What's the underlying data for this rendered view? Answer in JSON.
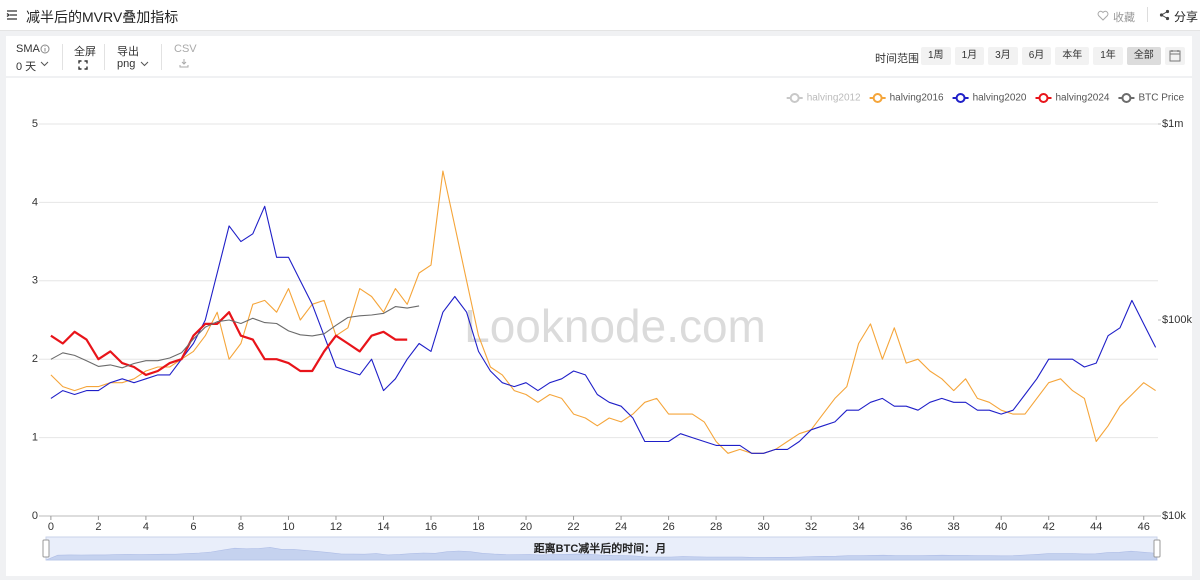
{
  "header": {
    "title": "减半后的MVRV叠加指标",
    "favorite": "收藏",
    "share": "分享"
  },
  "toolbar": {
    "sma_label": "SMA",
    "sma_value": "0 天",
    "fullscreen": "全屏",
    "export_label": "导出",
    "export_value": "png",
    "csv": "CSV",
    "range_label": "时间范围",
    "ranges": [
      "1周",
      "1月",
      "3月",
      "6月",
      "本年",
      "1年",
      "全部"
    ],
    "active_range": "全部"
  },
  "chart_data": {
    "type": "line",
    "watermark": "Looknode.com",
    "x_label": "距离BTC减半后的时间：月",
    "xlim": [
      -0.5,
      46.6
    ],
    "xticks": [
      0,
      2,
      4,
      6,
      8,
      10,
      12,
      14,
      16,
      18,
      20,
      22,
      24,
      26,
      28,
      30,
      32,
      34,
      36,
      38,
      40,
      42,
      44,
      46
    ],
    "ylim": [
      0,
      5
    ],
    "yticks": [
      0,
      1,
      2,
      3,
      4,
      5
    ],
    "y2lim": [
      10000,
      1000000
    ],
    "y2log": true,
    "y2ticks": [
      {
        "value": 10000,
        "label": "$10k"
      },
      {
        "value": 100000,
        "label": "$100k"
      },
      {
        "value": 1000000,
        "label": "$1m"
      }
    ],
    "grid": true,
    "legend": "top-right",
    "x": [
      0,
      0.5,
      1,
      1.5,
      2,
      2.5,
      3,
      3.5,
      4,
      4.5,
      5,
      5.5,
      6,
      6.5,
      7,
      7.5,
      8,
      8.5,
      9,
      9.5,
      10,
      10.5,
      11,
      11.5,
      12,
      12.5,
      13,
      13.5,
      14,
      14.5,
      15,
      15.5,
      16,
      16.5,
      17,
      17.5,
      18,
      18.5,
      19,
      19.5,
      20,
      20.5,
      21,
      21.5,
      22,
      22.5,
      23,
      23.5,
      24,
      24.5,
      25,
      25.5,
      26,
      26.5,
      27,
      27.5,
      28,
      28.5,
      29,
      29.5,
      30,
      30.5,
      31,
      31.5,
      32,
      32.5,
      33,
      33.5,
      34,
      34.5,
      35,
      35.5,
      36,
      36.5,
      37,
      37.5,
      38,
      38.5,
      39,
      39.5,
      40,
      40.5,
      41,
      41.5,
      42,
      42.5,
      43,
      43.5,
      44,
      44.5,
      45,
      45.5,
      46,
      46.5
    ],
    "series": [
      {
        "name": "halving2012",
        "color": "#c8c8c8",
        "hidden": true,
        "values": [
          null,
          null,
          null,
          null,
          null,
          null,
          null,
          null,
          null,
          null,
          null,
          null,
          null,
          null,
          null,
          null,
          null,
          null,
          null,
          null,
          null,
          null,
          null,
          null,
          null,
          null,
          null,
          null,
          null,
          null,
          null,
          null,
          null,
          null,
          null,
          null,
          null,
          null,
          null,
          null,
          null,
          null,
          null,
          null,
          null,
          null,
          null,
          null,
          null,
          null,
          null,
          null,
          null,
          null,
          null,
          null,
          null,
          null,
          null,
          null,
          null,
          null,
          null,
          null,
          null,
          null,
          null,
          null,
          null,
          null,
          null,
          null,
          null,
          null,
          null,
          null,
          null,
          null,
          null,
          null,
          null,
          null,
          null,
          null,
          null,
          null,
          null,
          null,
          null,
          null,
          null,
          null,
          null,
          null
        ]
      },
      {
        "name": "halving2016",
        "color": "#f5a53a",
        "values": [
          1.8,
          1.65,
          1.6,
          1.65,
          1.65,
          1.7,
          1.7,
          1.75,
          1.85,
          1.9,
          1.9,
          2.0,
          2.1,
          2.3,
          2.6,
          2.0,
          2.2,
          2.7,
          2.75,
          2.6,
          2.9,
          2.5,
          2.7,
          2.75,
          2.3,
          2.4,
          2.9,
          2.8,
          2.6,
          2.9,
          2.7,
          3.1,
          3.2,
          4.4,
          3.7,
          3.0,
          2.3,
          1.9,
          1.8,
          1.6,
          1.55,
          1.45,
          1.55,
          1.5,
          1.3,
          1.25,
          1.15,
          1.25,
          1.2,
          1.3,
          1.45,
          1.5,
          1.3,
          1.3,
          1.3,
          1.2,
          0.95,
          0.8,
          0.85,
          0.8,
          0.8,
          0.85,
          0.95,
          1.05,
          1.1,
          1.3,
          1.5,
          1.65,
          2.2,
          2.45,
          2.0,
          2.4,
          1.95,
          2.0,
          1.85,
          1.75,
          1.6,
          1.75,
          1.5,
          1.45,
          1.35,
          1.3,
          1.3,
          1.5,
          1.7,
          1.75,
          1.6,
          1.5,
          0.95,
          1.15,
          1.4,
          1.55,
          1.7,
          1.6
        ]
      },
      {
        "name": "halving2020",
        "color": "#1f1fc8",
        "values": [
          1.5,
          1.6,
          1.55,
          1.6,
          1.6,
          1.7,
          1.75,
          1.7,
          1.75,
          1.8,
          1.8,
          2.0,
          2.2,
          2.5,
          3.1,
          3.7,
          3.5,
          3.6,
          3.95,
          3.3,
          3.3,
          3.0,
          2.7,
          2.3,
          1.9,
          1.85,
          1.8,
          2.0,
          1.6,
          1.75,
          2.0,
          2.2,
          2.1,
          2.6,
          2.8,
          2.6,
          2.1,
          1.85,
          1.7,
          1.65,
          1.7,
          1.6,
          1.7,
          1.75,
          1.85,
          1.8,
          1.55,
          1.45,
          1.4,
          1.25,
          0.95,
          0.95,
          0.95,
          1.05,
          1.0,
          0.95,
          0.9,
          0.9,
          0.9,
          0.8,
          0.8,
          0.85,
          0.85,
          0.95,
          1.1,
          1.15,
          1.2,
          1.35,
          1.35,
          1.45,
          1.5,
          1.4,
          1.4,
          1.35,
          1.45,
          1.5,
          1.45,
          1.45,
          1.35,
          1.35,
          1.3,
          1.35,
          1.55,
          1.75,
          2.0,
          2.0,
          2.0,
          1.9,
          1.95,
          2.3,
          2.4,
          2.75,
          2.45,
          2.15
        ]
      },
      {
        "name": "halving2024",
        "color": "#e8141a",
        "values": [
          2.3,
          2.2,
          2.35,
          2.25,
          2.0,
          2.1,
          1.95,
          1.9,
          1.8,
          1.85,
          1.95,
          2.0,
          2.3,
          2.45,
          2.45,
          2.6,
          2.3,
          2.25,
          2.0,
          2.0,
          1.95,
          1.85,
          1.85,
          2.1,
          2.3,
          2.2,
          2.1,
          2.3,
          2.35,
          2.25,
          2.25,
          null,
          null,
          null,
          null,
          null,
          null,
          null,
          null,
          null,
          null,
          null,
          null,
          null,
          null,
          null,
          null,
          null,
          null,
          null,
          null,
          null,
          null,
          null,
          null,
          null,
          null,
          null,
          null,
          null,
          null,
          null,
          null,
          null,
          null,
          null,
          null,
          null,
          null,
          null,
          null,
          null,
          null,
          null,
          null,
          null,
          null,
          null,
          null,
          null,
          null,
          null,
          null,
          null,
          null,
          null,
          null,
          null,
          null,
          null,
          null,
          null,
          null,
          null
        ]
      },
      {
        "name": "BTC Price",
        "color": "#6b6b6b",
        "axis": "y2",
        "values": [
          63000,
          68000,
          66000,
          62000,
          58000,
          59000,
          57000,
          60000,
          62000,
          62000,
          64000,
          68000,
          80000,
          92000,
          98000,
          100000,
          96000,
          102000,
          97000,
          96000,
          88000,
          84000,
          83000,
          85000,
          94000,
          103000,
          105000,
          106000,
          108000,
          117000,
          115000,
          118000,
          null,
          null,
          null,
          null,
          null,
          null,
          null,
          null,
          null,
          null,
          null,
          null,
          null,
          null,
          null,
          null,
          null,
          null,
          null,
          null,
          null,
          null,
          null,
          null,
          null,
          null,
          null,
          null,
          null,
          null,
          null,
          null,
          null,
          null,
          null,
          null,
          null,
          null,
          null,
          null,
          null,
          null,
          null,
          null,
          null,
          null,
          null,
          null,
          null,
          null,
          null,
          null,
          null,
          null,
          null,
          null,
          null,
          null,
          null,
          null,
          null,
          null
        ]
      }
    ]
  }
}
